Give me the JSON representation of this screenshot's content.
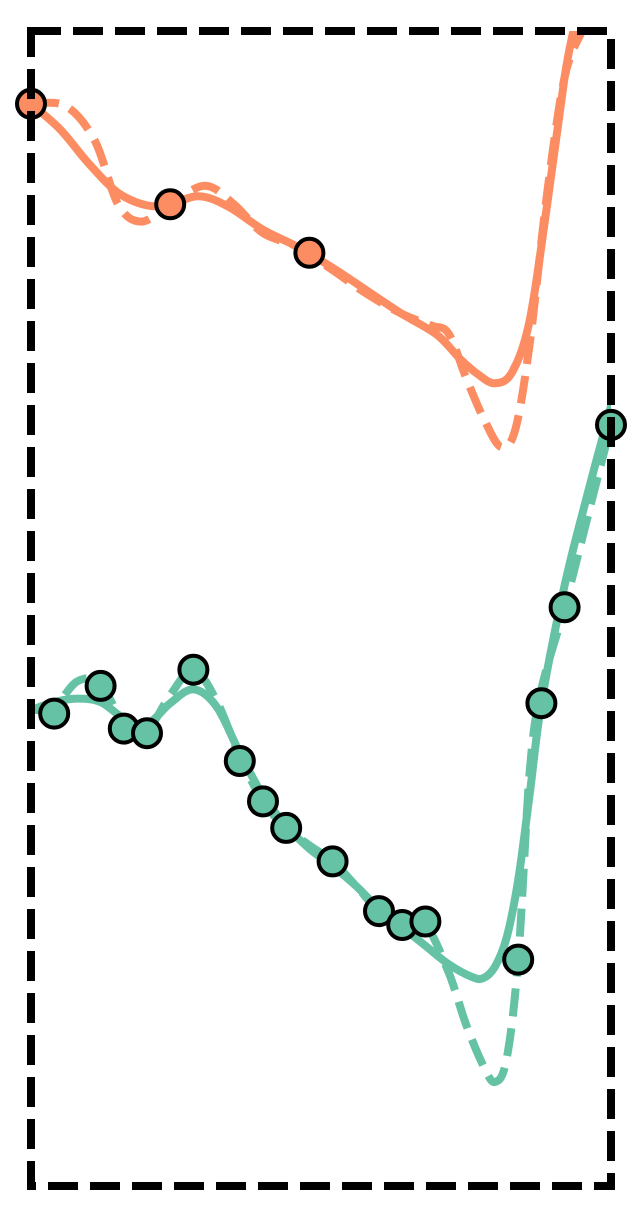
{
  "chart_data": {
    "type": "line",
    "title": "",
    "xlabel": "",
    "ylabel": "",
    "grid": false,
    "legend": "none",
    "xlim": [
      0,
      1
    ],
    "ylim": [
      0,
      1
    ],
    "series": [
      {
        "role": "upper",
        "color": "#fc8d62",
        "points": [
          {
            "x": 0.0,
            "y": 0.937
          },
          {
            "x": 0.24,
            "y": 0.85
          },
          {
            "x": 0.48,
            "y": 0.808
          }
        ],
        "solid_curve": [
          [
            0.0,
            0.937
          ],
          [
            0.05,
            0.915
          ],
          [
            0.1,
            0.885
          ],
          [
            0.15,
            0.86
          ],
          [
            0.2,
            0.849
          ],
          [
            0.24,
            0.85
          ],
          [
            0.29,
            0.857
          ],
          [
            0.34,
            0.848
          ],
          [
            0.4,
            0.828
          ],
          [
            0.46,
            0.813
          ],
          [
            0.52,
            0.795
          ],
          [
            0.58,
            0.775
          ],
          [
            0.64,
            0.755
          ],
          [
            0.7,
            0.737
          ],
          [
            0.74,
            0.716
          ],
          [
            0.77,
            0.703
          ],
          [
            0.8,
            0.695
          ],
          [
            0.83,
            0.705
          ],
          [
            0.86,
            0.75
          ],
          [
            0.89,
            0.85
          ],
          [
            0.92,
            0.96
          ],
          [
            0.935,
            1.0
          ]
        ],
        "dashed_curve": [
          [
            0.0,
            0.937
          ],
          [
            0.06,
            0.935
          ],
          [
            0.11,
            0.905
          ],
          [
            0.15,
            0.85
          ],
          [
            0.19,
            0.835
          ],
          [
            0.24,
            0.85
          ],
          [
            0.3,
            0.866
          ],
          [
            0.35,
            0.85
          ],
          [
            0.4,
            0.825
          ],
          [
            0.46,
            0.813
          ],
          [
            0.52,
            0.793
          ],
          [
            0.58,
            0.772
          ],
          [
            0.64,
            0.755
          ],
          [
            0.69,
            0.745
          ],
          [
            0.72,
            0.738
          ],
          [
            0.75,
            0.7
          ],
          [
            0.78,
            0.665
          ],
          [
            0.81,
            0.64
          ],
          [
            0.835,
            0.655
          ],
          [
            0.86,
            0.73
          ],
          [
            0.89,
            0.86
          ],
          [
            0.92,
            0.96
          ],
          [
            0.95,
            1.0
          ]
        ]
      },
      {
        "role": "lower",
        "color": "#66c2a5",
        "points": [
          {
            "x": 0.04,
            "y": 0.409
          },
          {
            "x": 0.12,
            "y": 0.433
          },
          {
            "x": 0.16,
            "y": 0.396
          },
          {
            "x": 0.2,
            "y": 0.392
          },
          {
            "x": 0.28,
            "y": 0.447
          },
          {
            "x": 0.36,
            "y": 0.368
          },
          {
            "x": 0.4,
            "y": 0.333
          },
          {
            "x": 0.44,
            "y": 0.31
          },
          {
            "x": 0.52,
            "y": 0.281
          },
          {
            "x": 0.6,
            "y": 0.238
          },
          {
            "x": 0.64,
            "y": 0.226
          },
          {
            "x": 0.68,
            "y": 0.229
          },
          {
            "x": 0.84,
            "y": 0.196
          },
          {
            "x": 0.88,
            "y": 0.418
          },
          {
            "x": 0.92,
            "y": 0.501
          },
          {
            "x": 1.0,
            "y": 0.659
          }
        ],
        "solid_curve": [
          [
            0.0,
            0.412
          ],
          [
            0.04,
            0.419
          ],
          [
            0.08,
            0.422
          ],
          [
            0.12,
            0.419
          ],
          [
            0.16,
            0.405
          ],
          [
            0.2,
            0.4
          ],
          [
            0.24,
            0.418
          ],
          [
            0.28,
            0.43
          ],
          [
            0.32,
            0.415
          ],
          [
            0.36,
            0.375
          ],
          [
            0.4,
            0.338
          ],
          [
            0.44,
            0.312
          ],
          [
            0.48,
            0.292
          ],
          [
            0.52,
            0.277
          ],
          [
            0.56,
            0.26
          ],
          [
            0.6,
            0.24
          ],
          [
            0.64,
            0.224
          ],
          [
            0.68,
            0.208
          ],
          [
            0.72,
            0.192
          ],
          [
            0.76,
            0.181
          ],
          [
            0.78,
            0.18
          ],
          [
            0.8,
            0.19
          ],
          [
            0.82,
            0.215
          ],
          [
            0.84,
            0.265
          ],
          [
            0.86,
            0.34
          ],
          [
            0.88,
            0.418
          ],
          [
            0.92,
            0.52
          ],
          [
            0.96,
            0.6
          ],
          [
            1.0,
            0.675
          ]
        ],
        "dashed_curve": [
          [
            0.0,
            0.412
          ],
          [
            0.04,
            0.415
          ],
          [
            0.08,
            0.437
          ],
          [
            0.12,
            0.435
          ],
          [
            0.16,
            0.4
          ],
          [
            0.2,
            0.395
          ],
          [
            0.24,
            0.425
          ],
          [
            0.28,
            0.447
          ],
          [
            0.32,
            0.42
          ],
          [
            0.36,
            0.372
          ],
          [
            0.4,
            0.333
          ],
          [
            0.44,
            0.31
          ],
          [
            0.48,
            0.295
          ],
          [
            0.52,
            0.281
          ],
          [
            0.56,
            0.26
          ],
          [
            0.6,
            0.238
          ],
          [
            0.64,
            0.227
          ],
          [
            0.68,
            0.226
          ],
          [
            0.72,
            0.185
          ],
          [
            0.75,
            0.14
          ],
          [
            0.78,
            0.104
          ],
          [
            0.8,
            0.09
          ],
          [
            0.82,
            0.11
          ],
          [
            0.84,
            0.196
          ],
          [
            0.86,
            0.36
          ],
          [
            0.88,
            0.43
          ],
          [
            0.92,
            0.501
          ],
          [
            0.96,
            0.58
          ],
          [
            1.0,
            0.659
          ]
        ]
      }
    ]
  }
}
